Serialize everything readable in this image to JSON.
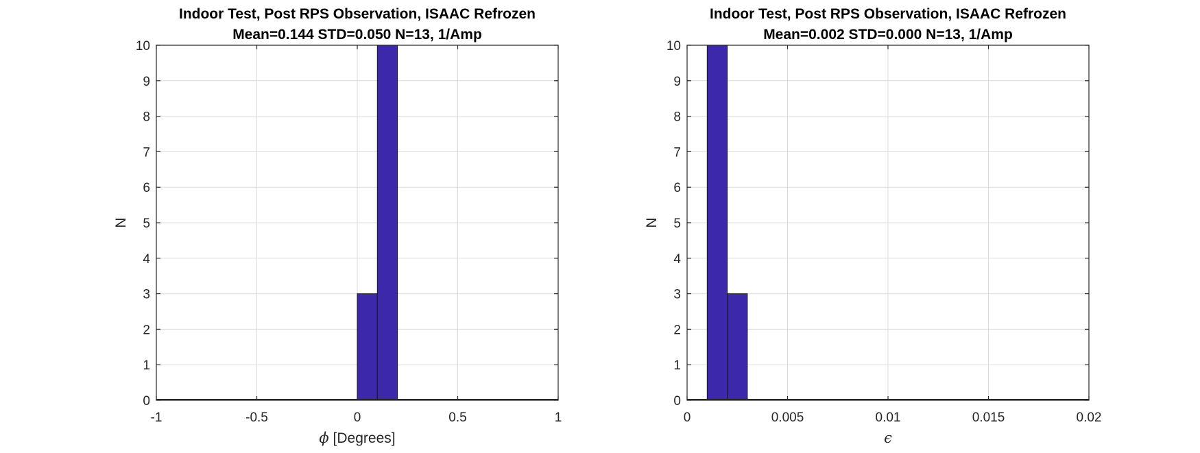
{
  "chart_data": [
    {
      "type": "bar",
      "title": [
        "Indoor Test, Post RPS Observation, ISAAC Refrozen",
        "Mean=0.144 STD=0.050 N=13, 1/Amp"
      ],
      "xlabel": "[Degrees]",
      "xlabel_symbol": "ϕ",
      "ylabel": "N",
      "xlim": [
        -1,
        1
      ],
      "ylim": [
        0,
        10
      ],
      "xticks": [
        -1,
        -0.5,
        0,
        0.5,
        1
      ],
      "xtick_labels": [
        "-1",
        "-0.5",
        "0",
        "0.5",
        "1"
      ],
      "yticks": [
        0,
        1,
        2,
        3,
        4,
        5,
        6,
        7,
        8,
        9,
        10
      ],
      "ytick_labels": [
        "0",
        "1",
        "2",
        "3",
        "4",
        "5",
        "6",
        "7",
        "8",
        "9",
        "10"
      ],
      "grid": true,
      "bar_color": "#3c28aa",
      "bins": [
        {
          "start": 0.0,
          "end": 0.1,
          "count": 3
        },
        {
          "start": 0.1,
          "end": 0.2,
          "count": 10
        }
      ]
    },
    {
      "type": "bar",
      "title": [
        "Indoor Test, Post RPS Observation, ISAAC Refrozen",
        "Mean=0.002 STD=0.000 N=13, 1/Amp"
      ],
      "xlabel": "",
      "xlabel_symbol": "ϵ",
      "ylabel": "N",
      "xlim": [
        0,
        0.02
      ],
      "ylim": [
        0,
        10
      ],
      "xticks": [
        0,
        0.005,
        0.01,
        0.015,
        0.02
      ],
      "xtick_labels": [
        "0",
        "0.005",
        "0.01",
        "0.015",
        "0.02"
      ],
      "yticks": [
        0,
        1,
        2,
        3,
        4,
        5,
        6,
        7,
        8,
        9,
        10
      ],
      "ytick_labels": [
        "0",
        "1",
        "2",
        "3",
        "4",
        "5",
        "6",
        "7",
        "8",
        "9",
        "10"
      ],
      "grid": true,
      "bar_color": "#3c28aa",
      "bins": [
        {
          "start": 0.001,
          "end": 0.002,
          "count": 10
        },
        {
          "start": 0.002,
          "end": 0.003,
          "count": 3
        }
      ]
    }
  ]
}
